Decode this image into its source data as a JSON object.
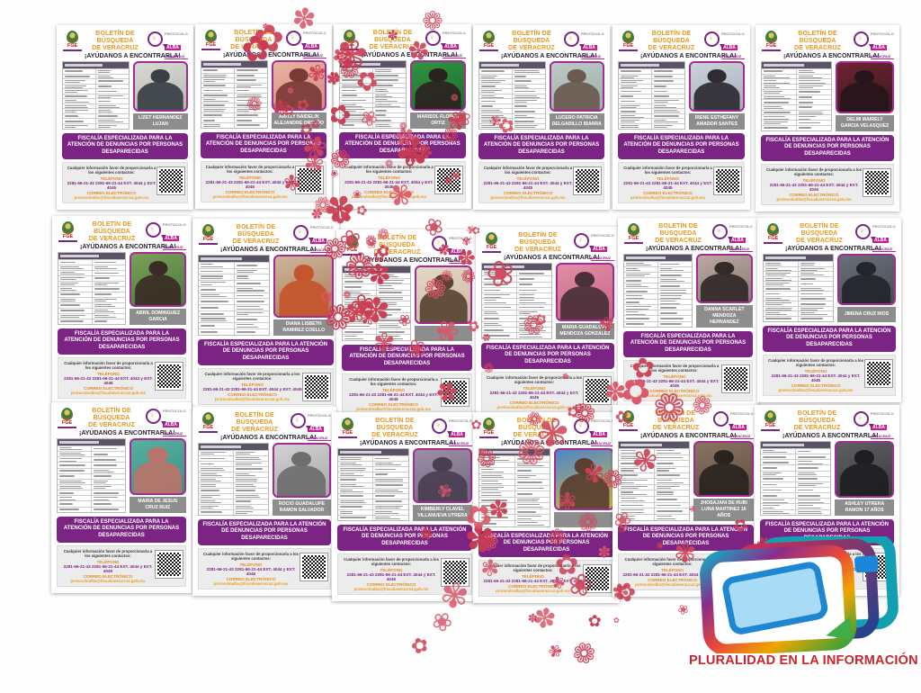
{
  "page": {
    "background": "#ffffff"
  },
  "bulletin_common": {
    "agency": "FGE",
    "title_line1": "BOLETÍN DE BÚSQUEDA",
    "title_line2": "DE VERACRUZ",
    "subtitle": "¡AYÚDANOS A ENCONTRARLA!",
    "protocol": {
      "line1": "PROTOCOLO",
      "line2": "ALBA",
      "line3": "VERACRUZ"
    },
    "banner": "FISCALÍA ESPECIALIZADA PARA LA ATENCIÓN DE DENUNCIAS POR PERSONAS DESAPARECIDAS",
    "contact_note": "Cualquier información favor de proporcionarla a los siguientes contactos:",
    "phone_label": "TELÉFONO",
    "phone_numbers": "2281-66-21-43   2281-66-21-44   EXT. 4044  y  EXT. 4045",
    "email_label": "CORREO ELECTRÓNICO",
    "email": "protocoloalba@fiscaliaveracruz.gob.mx",
    "colors": {
      "banner_purple": "#7b2483",
      "title_orange": "#e8971c",
      "alba_magenta": "#c0218f",
      "photo_border": "#a42a96",
      "name_label_bg": "#8d8d8d",
      "flower_red": "#d0455b"
    }
  },
  "bulletins": [
    {
      "name": "LIZET HERNANDEZ LUJAN"
    },
    {
      "name": "ARITZY NAIDELIN ALEJANDRE ORTUÑO"
    },
    {
      "name": "MARISOL FLORES ORTIZ"
    },
    {
      "name": "LUCERO PATRICIA DELGADILLO IBARRA"
    },
    {
      "name": "IRENE ESTHEFANY AMADOR SANTES"
    },
    {
      "name": "DELMI MAIRELY GARCIA VELASQUEZ"
    },
    {
      "name": "ABRIL DOMINGUEZ GARCIA"
    },
    {
      "name": "DIANA LISBETH RAMIREZ COELLO"
    },
    {
      "name": ""
    },
    {
      "name": "MARIA GUADALUPE MENDOZA GONZALEZ"
    },
    {
      "name": "DANNA SCARLET MENDOZA HERNANDEZ"
    },
    {
      "name": "JIMENA CRUZ RIOS"
    },
    {
      "name": "MARIA DE JESUS CRUZ RUIZ"
    },
    {
      "name": "ROCIO GUADALUPE RAMON SALVADOR"
    },
    {
      "name": "KIMBERLY CLAVEL VILLANUEVA UTRERA"
    },
    {
      "name": ""
    },
    {
      "name": "JHOSAJANI DE RUBI LUNA MARTINEZ 16 AÑOS"
    },
    {
      "name": "ASHLEY UTRERA RAMON 17 AÑOS"
    }
  ],
  "footer_logo": {
    "caption": "PLURALIDAD EN LA INFORMACIÓN",
    "caption_color": "#c9252d"
  }
}
